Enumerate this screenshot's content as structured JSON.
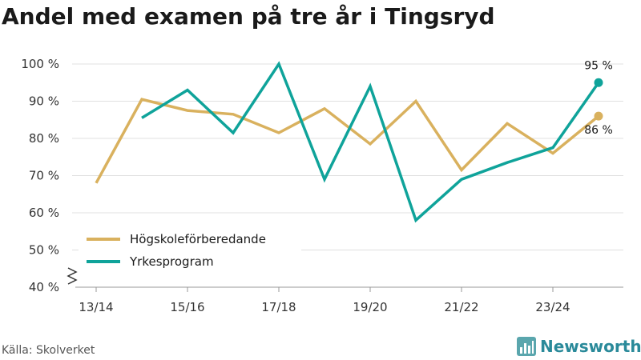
{
  "title": "Andel med examen på tre år i Tingsryd",
  "source": "Källa: Skolverket",
  "brand": {
    "name": "Newsworthy",
    "logo_icon": "bar-chart-logo-icon",
    "color": "#2a8a9a"
  },
  "chart_data": {
    "type": "line",
    "title": "Andel med examen på tre år i Tingsryd",
    "x": [
      "13/14",
      "14/15",
      "15/16",
      "16/17",
      "17/18",
      "18/19",
      "19/20",
      "20/21",
      "21/22",
      "22/23",
      "23/24",
      "24/25"
    ],
    "x_tick_labels": [
      "13/14",
      "15/16",
      "17/18",
      "19/20",
      "21/22",
      "23/24"
    ],
    "y_tick_labels": [
      "40 %",
      "50 %",
      "60 %",
      "70 %",
      "80 %",
      "90 %",
      "100 %"
    ],
    "y_ticks": [
      40,
      50,
      60,
      70,
      80,
      90,
      100
    ],
    "ylim": [
      40,
      100
    ],
    "y_axis_break": true,
    "grid": true,
    "legend_position": "bottom-left",
    "series": [
      {
        "name": "Högskoleförberedande",
        "color": "#d9b15e",
        "values": [
          68,
          90.5,
          87.5,
          86.5,
          81.5,
          88,
          78.5,
          90,
          71.5,
          84,
          76,
          86
        ],
        "end_label": "86 %"
      },
      {
        "name": "Yrkesprogram",
        "color": "#0fa39a",
        "values": [
          null,
          85.5,
          93,
          81.5,
          100,
          69,
          94,
          58,
          69,
          73.5,
          77.5,
          95
        ],
        "end_label": "95 %"
      }
    ]
  }
}
